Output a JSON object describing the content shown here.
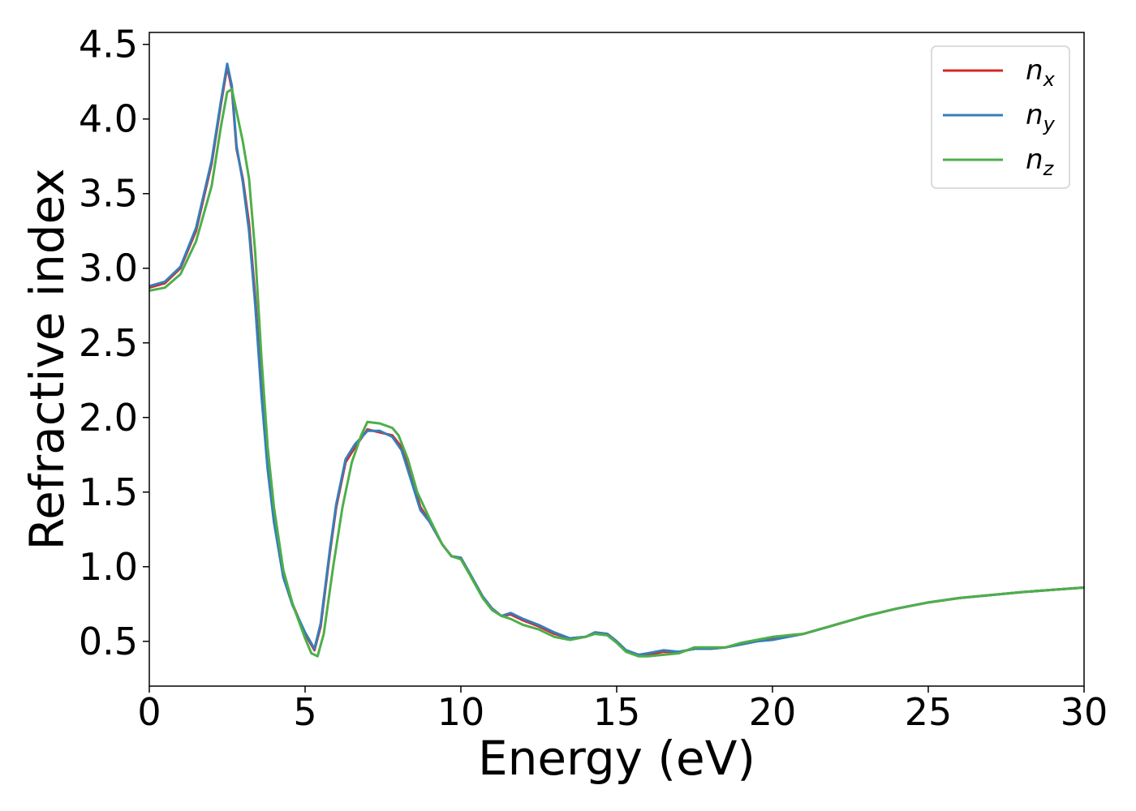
{
  "chart_data": {
    "type": "line",
    "title": "",
    "xlabel": "Energy (eV)",
    "ylabel": "Refractive index",
    "xlim": [
      0,
      30
    ],
    "ylim": [
      0.2,
      4.58
    ],
    "xticks": [
      0,
      5,
      10,
      15,
      20,
      25,
      30
    ],
    "yticks": [
      0.5,
      1.0,
      1.5,
      2.0,
      2.5,
      3.0,
      3.5,
      4.0,
      4.5
    ],
    "xtick_labels": [
      "0",
      "5",
      "10",
      "15",
      "20",
      "25",
      "30"
    ],
    "ytick_labels": [
      "0.5",
      "1.0",
      "1.5",
      "2.0",
      "2.5",
      "3.0",
      "3.5",
      "4.0",
      "4.5"
    ],
    "grid": false,
    "legend": "top-right",
    "series": [
      {
        "name": "n",
        "subscript": "x",
        "color": "#d62728",
        "points": [
          [
            0,
            2.87
          ],
          [
            0.5,
            2.9
          ],
          [
            1.0,
            3.0
          ],
          [
            1.5,
            3.25
          ],
          [
            2.0,
            3.7
          ],
          [
            2.3,
            4.1
          ],
          [
            2.5,
            4.35
          ],
          [
            2.65,
            4.2
          ],
          [
            2.8,
            3.8
          ],
          [
            3.0,
            3.6
          ],
          [
            3.2,
            3.3
          ],
          [
            3.4,
            2.8
          ],
          [
            3.6,
            2.2
          ],
          [
            3.8,
            1.7
          ],
          [
            4.0,
            1.35
          ],
          [
            4.3,
            0.95
          ],
          [
            4.6,
            0.75
          ],
          [
            5.0,
            0.55
          ],
          [
            5.3,
            0.44
          ],
          [
            5.5,
            0.6
          ],
          [
            5.8,
            1.1
          ],
          [
            6.0,
            1.4
          ],
          [
            6.3,
            1.7
          ],
          [
            6.6,
            1.8
          ],
          [
            7.0,
            1.92
          ],
          [
            7.4,
            1.9
          ],
          [
            7.8,
            1.88
          ],
          [
            8.1,
            1.8
          ],
          [
            8.4,
            1.6
          ],
          [
            8.7,
            1.4
          ],
          [
            9.0,
            1.3
          ],
          [
            9.4,
            1.15
          ],
          [
            9.7,
            1.07
          ],
          [
            10.0,
            1.06
          ],
          [
            10.3,
            0.95
          ],
          [
            10.7,
            0.8
          ],
          [
            11.0,
            0.72
          ],
          [
            11.3,
            0.67
          ],
          [
            11.6,
            0.68
          ],
          [
            12.0,
            0.64
          ],
          [
            12.5,
            0.6
          ],
          [
            13.0,
            0.55
          ],
          [
            13.5,
            0.52
          ],
          [
            14.0,
            0.53
          ],
          [
            14.3,
            0.56
          ],
          [
            14.7,
            0.55
          ],
          [
            15.0,
            0.5
          ],
          [
            15.3,
            0.44
          ],
          [
            15.7,
            0.41
          ],
          [
            16.0,
            0.41
          ],
          [
            16.5,
            0.43
          ],
          [
            17.0,
            0.43
          ],
          [
            17.5,
            0.45
          ],
          [
            18.0,
            0.45
          ],
          [
            18.5,
            0.46
          ],
          [
            19.0,
            0.48
          ],
          [
            19.5,
            0.5
          ],
          [
            20.0,
            0.52
          ],
          [
            20.5,
            0.54
          ],
          [
            21.0,
            0.55
          ],
          [
            22.0,
            0.61
          ],
          [
            23.0,
            0.67
          ],
          [
            24.0,
            0.72
          ],
          [
            25.0,
            0.76
          ],
          [
            26.0,
            0.79
          ],
          [
            27.0,
            0.81
          ],
          [
            28.0,
            0.83
          ],
          [
            29.0,
            0.845
          ],
          [
            30.0,
            0.86
          ]
        ]
      },
      {
        "name": "n",
        "subscript": "y",
        "color": "#377eb8",
        "points": [
          [
            0,
            2.88
          ],
          [
            0.5,
            2.91
          ],
          [
            1.0,
            3.01
          ],
          [
            1.5,
            3.27
          ],
          [
            2.0,
            3.72
          ],
          [
            2.3,
            4.12
          ],
          [
            2.5,
            4.37
          ],
          [
            2.65,
            4.22
          ],
          [
            2.8,
            3.82
          ],
          [
            3.0,
            3.58
          ],
          [
            3.2,
            3.25
          ],
          [
            3.4,
            2.75
          ],
          [
            3.6,
            2.15
          ],
          [
            3.8,
            1.65
          ],
          [
            4.0,
            1.3
          ],
          [
            4.3,
            0.93
          ],
          [
            4.6,
            0.74
          ],
          [
            5.0,
            0.56
          ],
          [
            5.3,
            0.45
          ],
          [
            5.5,
            0.62
          ],
          [
            5.8,
            1.12
          ],
          [
            6.0,
            1.42
          ],
          [
            6.3,
            1.72
          ],
          [
            6.6,
            1.82
          ],
          [
            7.0,
            1.91
          ],
          [
            7.4,
            1.91
          ],
          [
            7.8,
            1.87
          ],
          [
            8.1,
            1.78
          ],
          [
            8.4,
            1.58
          ],
          [
            8.7,
            1.38
          ],
          [
            9.0,
            1.3
          ],
          [
            9.4,
            1.15
          ],
          [
            9.7,
            1.07
          ],
          [
            10.0,
            1.06
          ],
          [
            10.3,
            0.95
          ],
          [
            10.7,
            0.8
          ],
          [
            11.0,
            0.72
          ],
          [
            11.3,
            0.67
          ],
          [
            11.6,
            0.69
          ],
          [
            12.0,
            0.65
          ],
          [
            12.5,
            0.61
          ],
          [
            13.0,
            0.56
          ],
          [
            13.5,
            0.52
          ],
          [
            14.0,
            0.53
          ],
          [
            14.3,
            0.56
          ],
          [
            14.7,
            0.55
          ],
          [
            15.0,
            0.5
          ],
          [
            15.3,
            0.44
          ],
          [
            15.7,
            0.41
          ],
          [
            16.0,
            0.42
          ],
          [
            16.5,
            0.44
          ],
          [
            17.0,
            0.43
          ],
          [
            17.5,
            0.45
          ],
          [
            18.0,
            0.45
          ],
          [
            18.5,
            0.46
          ],
          [
            19.0,
            0.48
          ],
          [
            19.5,
            0.5
          ],
          [
            20.0,
            0.51
          ],
          [
            20.5,
            0.53
          ],
          [
            21.0,
            0.55
          ],
          [
            22.0,
            0.61
          ],
          [
            23.0,
            0.67
          ],
          [
            24.0,
            0.72
          ],
          [
            25.0,
            0.76
          ],
          [
            26.0,
            0.79
          ],
          [
            27.0,
            0.81
          ],
          [
            28.0,
            0.83
          ],
          [
            29.0,
            0.845
          ],
          [
            30.0,
            0.86
          ]
        ]
      },
      {
        "name": "n",
        "subscript": "z",
        "color": "#4daf4a",
        "points": [
          [
            0,
            2.85
          ],
          [
            0.5,
            2.87
          ],
          [
            1.0,
            2.96
          ],
          [
            1.5,
            3.18
          ],
          [
            2.0,
            3.55
          ],
          [
            2.3,
            3.95
          ],
          [
            2.5,
            4.18
          ],
          [
            2.65,
            4.2
          ],
          [
            2.8,
            4.05
          ],
          [
            3.0,
            3.85
          ],
          [
            3.2,
            3.6
          ],
          [
            3.4,
            3.1
          ],
          [
            3.6,
            2.4
          ],
          [
            3.8,
            1.8
          ],
          [
            4.0,
            1.4
          ],
          [
            4.3,
            0.98
          ],
          [
            4.6,
            0.75
          ],
          [
            5.0,
            0.52
          ],
          [
            5.2,
            0.42
          ],
          [
            5.4,
            0.4
          ],
          [
            5.6,
            0.55
          ],
          [
            5.9,
            1.0
          ],
          [
            6.2,
            1.4
          ],
          [
            6.5,
            1.7
          ],
          [
            6.8,
            1.88
          ],
          [
            7.0,
            1.97
          ],
          [
            7.4,
            1.96
          ],
          [
            7.8,
            1.93
          ],
          [
            8.0,
            1.88
          ],
          [
            8.3,
            1.72
          ],
          [
            8.6,
            1.5
          ],
          [
            9.0,
            1.32
          ],
          [
            9.4,
            1.15
          ],
          [
            9.7,
            1.07
          ],
          [
            10.0,
            1.05
          ],
          [
            10.3,
            0.94
          ],
          [
            10.7,
            0.79
          ],
          [
            11.0,
            0.71
          ],
          [
            11.3,
            0.67
          ],
          [
            11.6,
            0.65
          ],
          [
            12.0,
            0.61
          ],
          [
            12.5,
            0.58
          ],
          [
            13.0,
            0.53
          ],
          [
            13.5,
            0.51
          ],
          [
            14.0,
            0.53
          ],
          [
            14.3,
            0.55
          ],
          [
            14.7,
            0.54
          ],
          [
            15.0,
            0.49
          ],
          [
            15.3,
            0.43
          ],
          [
            15.7,
            0.4
          ],
          [
            16.0,
            0.4
          ],
          [
            16.5,
            0.41
          ],
          [
            17.0,
            0.42
          ],
          [
            17.5,
            0.46
          ],
          [
            18.0,
            0.46
          ],
          [
            18.5,
            0.46
          ],
          [
            19.0,
            0.49
          ],
          [
            19.5,
            0.51
          ],
          [
            20.0,
            0.53
          ],
          [
            20.5,
            0.54
          ],
          [
            21.0,
            0.55
          ],
          [
            22.0,
            0.61
          ],
          [
            23.0,
            0.67
          ],
          [
            24.0,
            0.72
          ],
          [
            25.0,
            0.76
          ],
          [
            26.0,
            0.79
          ],
          [
            27.0,
            0.81
          ],
          [
            28.0,
            0.83
          ],
          [
            29.0,
            0.845
          ],
          [
            30.0,
            0.86
          ]
        ]
      }
    ]
  }
}
